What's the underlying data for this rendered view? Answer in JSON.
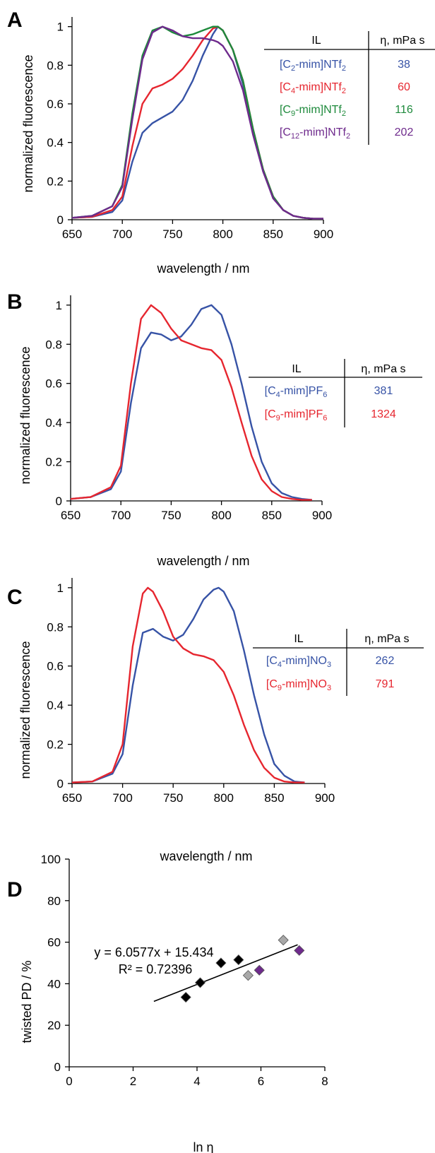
{
  "colors": {
    "blue": "#3753a6",
    "red": "#e6262f",
    "green": "#1e8a3c",
    "purple": "#6e2a8c",
    "black": "#000000",
    "gray": "#a8a8a8"
  },
  "panels": [
    {
      "letter": "A",
      "xlabel": "wavelength / nm",
      "ylabel": "normalized fluorescence",
      "table": {
        "head_il": "IL",
        "head_eta": "η, mPa s",
        "rows": [
          {
            "il": "[C2-mim]NTf2",
            "eta": "38",
            "color": "#3753a6"
          },
          {
            "il": "[C4-mim]NTf2",
            "eta": "60",
            "color": "#e6262f"
          },
          {
            "il": "[C9-mim]NTf2",
            "eta": "116",
            "color": "#1e8a3c"
          },
          {
            "il": "[C12-mim]NTf2",
            "eta": "202",
            "color": "#6e2a8c"
          }
        ]
      }
    },
    {
      "letter": "B",
      "xlabel": "wavelength / nm",
      "ylabel": "normalized fluorescence",
      "table": {
        "head_il": "IL",
        "head_eta": "η, mPa s",
        "rows": [
          {
            "il": "[C4-mim]PF6",
            "eta": "381",
            "color": "#3753a6"
          },
          {
            "il": "[C9-mim]PF6",
            "eta": "1324",
            "color": "#e6262f"
          }
        ]
      }
    },
    {
      "letter": "C",
      "xlabel": "wavelength / nm",
      "ylabel": "normalized fluorescence",
      "table": {
        "head_il": "IL",
        "head_eta": "η, mPa s",
        "rows": [
          {
            "il": "[C4-mim]NO3",
            "eta": "262",
            "color": "#3753a6"
          },
          {
            "il": "[C9-mim]NO3",
            "eta": "791",
            "color": "#e6262f"
          }
        ]
      }
    },
    {
      "letter": "D",
      "xlabel": "ln η",
      "ylabel": "twisted PD / %",
      "equation": "y = 6.0577x + 15.434",
      "r2": "R² = 0.72396"
    }
  ],
  "chart_data": [
    {
      "type": "line",
      "xlim": [
        650,
        900
      ],
      "ylim": [
        0,
        1.05
      ],
      "xticks": [
        650,
        700,
        750,
        800,
        850,
        900
      ],
      "yticks": [
        0,
        0.2,
        0.4,
        0.6,
        0.8,
        1
      ],
      "ytick_labels": [
        "0",
        "0.2",
        "0.4",
        "0.6",
        "0.8",
        "1"
      ],
      "series": [
        {
          "name": "[C2-mim]NTf2",
          "color": "#3753a6",
          "x": [
            650,
            670,
            690,
            700,
            710,
            720,
            730,
            740,
            750,
            760,
            770,
            780,
            790,
            795,
            800,
            810,
            820,
            830,
            840,
            850,
            860,
            870,
            880,
            890,
            900
          ],
          "y": [
            0.01,
            0.015,
            0.04,
            0.1,
            0.3,
            0.45,
            0.5,
            0.53,
            0.56,
            0.62,
            0.72,
            0.85,
            0.96,
            1.0,
            0.98,
            0.88,
            0.7,
            0.45,
            0.25,
            0.12,
            0.05,
            0.02,
            0.01,
            0.005,
            0.005
          ]
        },
        {
          "name": "[C4-mim]NTf2",
          "color": "#e6262f",
          "x": [
            650,
            670,
            690,
            700,
            710,
            720,
            730,
            740,
            750,
            760,
            770,
            780,
            790,
            795,
            800,
            810,
            820,
            830,
            840,
            850,
            860,
            870,
            880,
            890,
            900
          ],
          "y": [
            0.01,
            0.015,
            0.05,
            0.12,
            0.38,
            0.6,
            0.68,
            0.7,
            0.73,
            0.78,
            0.85,
            0.93,
            0.99,
            1.0,
            0.98,
            0.88,
            0.72,
            0.47,
            0.26,
            0.12,
            0.05,
            0.02,
            0.01,
            0.005,
            0.005
          ]
        },
        {
          "name": "[C9-mim]NTf2",
          "color": "#1e8a3c",
          "x": [
            650,
            670,
            690,
            700,
            710,
            720,
            730,
            740,
            750,
            760,
            770,
            780,
            790,
            795,
            800,
            810,
            820,
            830,
            840,
            850,
            860,
            870,
            880,
            890,
            900
          ],
          "y": [
            0.01,
            0.02,
            0.07,
            0.18,
            0.55,
            0.85,
            0.98,
            1.0,
            0.97,
            0.95,
            0.96,
            0.98,
            1.0,
            1.0,
            0.98,
            0.88,
            0.72,
            0.47,
            0.26,
            0.12,
            0.05,
            0.02,
            0.01,
            0.005,
            0.005
          ]
        },
        {
          "name": "[C12-mim]NTf2",
          "color": "#6e2a8c",
          "x": [
            650,
            670,
            690,
            700,
            710,
            720,
            730,
            740,
            750,
            760,
            770,
            780,
            790,
            795,
            800,
            810,
            820,
            830,
            840,
            850,
            860,
            870,
            880,
            890,
            900
          ],
          "y": [
            0.01,
            0.02,
            0.07,
            0.17,
            0.52,
            0.83,
            0.97,
            1.0,
            0.98,
            0.95,
            0.94,
            0.94,
            0.93,
            0.92,
            0.9,
            0.82,
            0.67,
            0.44,
            0.25,
            0.11,
            0.05,
            0.02,
            0.01,
            0.005,
            0.005
          ]
        }
      ]
    },
    {
      "type": "line",
      "xlim": [
        650,
        900
      ],
      "ylim": [
        0,
        1.05
      ],
      "xticks": [
        650,
        700,
        750,
        800,
        850,
        900
      ],
      "yticks": [
        0,
        0.2,
        0.4,
        0.6,
        0.8,
        1
      ],
      "ytick_labels": [
        "0",
        "0.2",
        "0.4",
        "0.6",
        "0.8",
        "1"
      ],
      "series": [
        {
          "name": "[C4-mim]PF6",
          "color": "#3753a6",
          "x": [
            650,
            670,
            690,
            700,
            710,
            720,
            730,
            740,
            750,
            760,
            770,
            780,
            790,
            800,
            810,
            820,
            830,
            840,
            850,
            860,
            870,
            880,
            890
          ],
          "y": [
            0.01,
            0.02,
            0.06,
            0.15,
            0.5,
            0.78,
            0.86,
            0.85,
            0.82,
            0.84,
            0.9,
            0.98,
            1.0,
            0.95,
            0.8,
            0.6,
            0.38,
            0.2,
            0.09,
            0.04,
            0.02,
            0.01,
            0.005
          ]
        },
        {
          "name": "[C9-mim]PF6",
          "color": "#e6262f",
          "x": [
            650,
            670,
            690,
            700,
            710,
            720,
            730,
            740,
            750,
            760,
            770,
            780,
            790,
            800,
            810,
            820,
            830,
            840,
            850,
            860,
            870,
            880,
            890
          ],
          "y": [
            0.01,
            0.02,
            0.07,
            0.18,
            0.6,
            0.93,
            1.0,
            0.96,
            0.88,
            0.82,
            0.8,
            0.78,
            0.77,
            0.72,
            0.58,
            0.4,
            0.23,
            0.11,
            0.05,
            0.02,
            0.01,
            0.005,
            0.005
          ]
        }
      ]
    },
    {
      "type": "line",
      "xlim": [
        650,
        900
      ],
      "ylim": [
        0,
        1.05
      ],
      "xticks": [
        650,
        700,
        750,
        800,
        850,
        900
      ],
      "yticks": [
        0,
        0.2,
        0.4,
        0.6,
        0.8,
        1
      ],
      "ytick_labels": [
        "0",
        "0.2",
        "0.4",
        "0.6",
        "0.8",
        "1"
      ],
      "series": [
        {
          "name": "[C4-mim]NO3",
          "color": "#3753a6",
          "x": [
            650,
            670,
            690,
            700,
            710,
            720,
            730,
            740,
            750,
            760,
            770,
            780,
            790,
            795,
            800,
            810,
            820,
            830,
            840,
            850,
            860,
            870,
            880
          ],
          "y": [
            0.005,
            0.01,
            0.05,
            0.15,
            0.5,
            0.77,
            0.79,
            0.75,
            0.73,
            0.76,
            0.84,
            0.94,
            0.99,
            1.0,
            0.98,
            0.88,
            0.68,
            0.45,
            0.25,
            0.1,
            0.04,
            0.01,
            0.005
          ]
        },
        {
          "name": "[C9-mim]NO3",
          "color": "#e6262f",
          "x": [
            650,
            670,
            690,
            700,
            710,
            720,
            725,
            730,
            740,
            750,
            760,
            770,
            780,
            790,
            800,
            810,
            820,
            830,
            840,
            850,
            860,
            870,
            880
          ],
          "y": [
            0.005,
            0.01,
            0.06,
            0.2,
            0.7,
            0.97,
            1.0,
            0.98,
            0.88,
            0.75,
            0.69,
            0.66,
            0.65,
            0.63,
            0.57,
            0.45,
            0.3,
            0.17,
            0.08,
            0.03,
            0.01,
            0.005,
            0.005
          ]
        }
      ]
    },
    {
      "type": "scatter",
      "xlim": [
        0,
        8
      ],
      "ylim": [
        0,
        100
      ],
      "xticks": [
        0,
        2,
        4,
        6,
        8
      ],
      "yticks": [
        0,
        20,
        40,
        60,
        80,
        100
      ],
      "ytick_labels": [
        "0",
        "20",
        "40",
        "60",
        "80",
        "100"
      ],
      "points": [
        {
          "x": 3.65,
          "y": 33.5,
          "color": "#000000"
        },
        {
          "x": 4.1,
          "y": 40.5,
          "color": "#000000"
        },
        {
          "x": 4.75,
          "y": 50,
          "color": "#000000"
        },
        {
          "x": 5.3,
          "y": 51.5,
          "color": "#000000"
        },
        {
          "x": 5.6,
          "y": 44,
          "color": "#a8a8a8"
        },
        {
          "x": 5.95,
          "y": 46.5,
          "color": "#6e2a8c"
        },
        {
          "x": 6.7,
          "y": 61,
          "color": "#a8a8a8"
        },
        {
          "x": 7.2,
          "y": 56,
          "color": "#6e2a8c"
        }
      ],
      "fit": {
        "slope": 6.0577,
        "intercept": 15.434,
        "x_start": 2.65,
        "x_end": 7.15
      }
    }
  ]
}
